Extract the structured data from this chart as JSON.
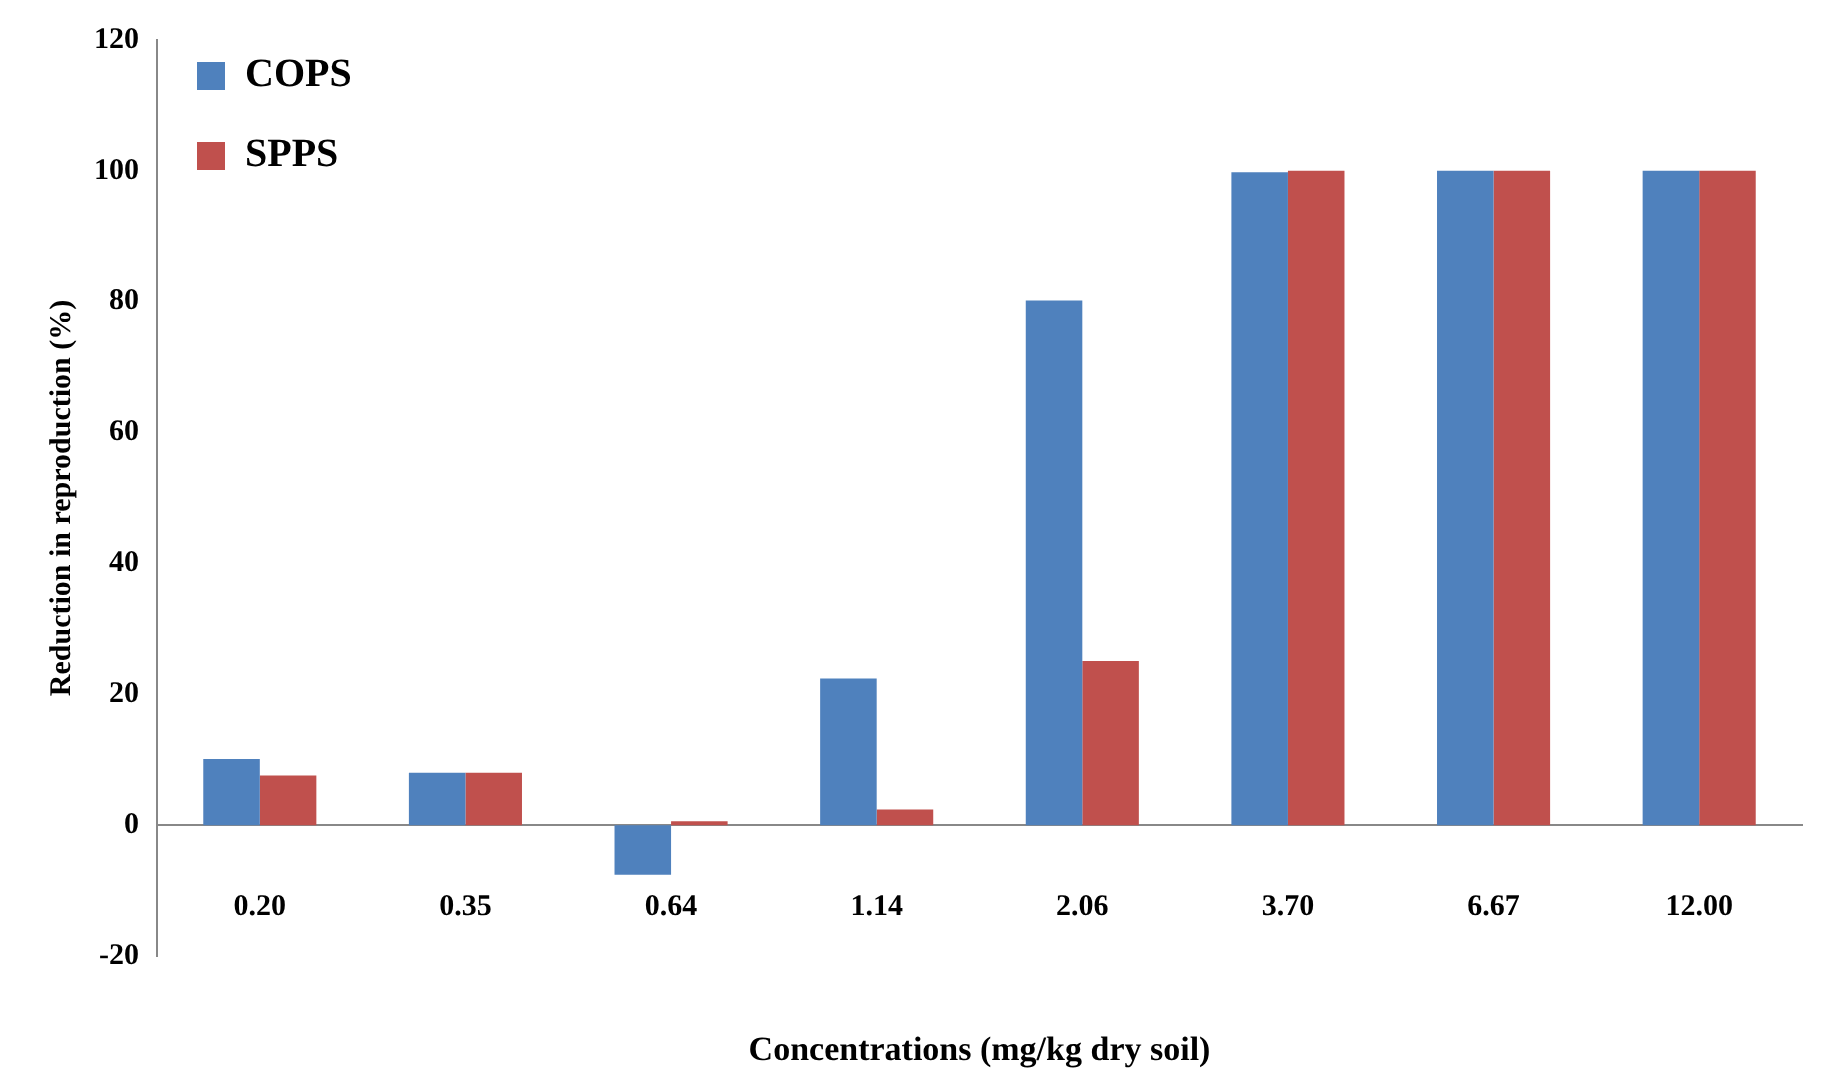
{
  "chart_data": {
    "type": "bar",
    "xlabel": "Concentrations (mg/kg dry soil)",
    "ylabel": "Reduction in reproduction (%)",
    "categories": [
      "0.20",
      "0.35",
      "0.64",
      "1.14",
      "2.06",
      "3.70",
      "6.67",
      "12.00"
    ],
    "series": [
      {
        "name": "COPS",
        "color": "#4f81bd",
        "values": [
          10.1,
          8.0,
          -7.6,
          22.4,
          80.2,
          99.8,
          100,
          100
        ]
      },
      {
        "name": "SPPS",
        "color": "#c0504d",
        "values": [
          7.6,
          8.0,
          0.6,
          2.4,
          25.1,
          100,
          100,
          100
        ]
      }
    ],
    "ylim": [
      -20,
      120
    ],
    "yticks": [
      -20,
      0,
      20,
      40,
      60,
      80,
      100,
      120
    ],
    "grid": false,
    "legend": "top left"
  }
}
